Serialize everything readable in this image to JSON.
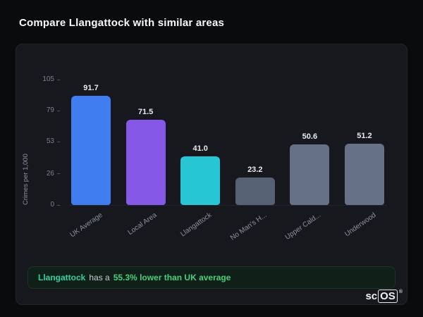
{
  "page": {
    "title": "Compare Llangattock with similar areas"
  },
  "chart_data": {
    "type": "bar",
    "title": "",
    "categories": [
      "UK Average",
      "Local Area",
      "Llangattock",
      "No Man's H...",
      "Upper Cald...",
      "Underwood"
    ],
    "values": [
      91.7,
      71.5,
      41.0,
      23.2,
      50.6,
      51.2
    ],
    "value_labels": [
      "91.7",
      "71.5",
      "41.0",
      "23.2",
      "50.6",
      "51.2"
    ],
    "bar_colors": [
      "#3f7df0",
      "#8658e8",
      "#26c6d4",
      "#566173",
      "#667186",
      "#667186"
    ],
    "xlabel": "",
    "ylabel": "Crimes per 1,000",
    "yticks": [
      0,
      26,
      53,
      79,
      105
    ],
    "ylim": [
      0,
      105
    ],
    "grid": false,
    "legend_position": "none"
  },
  "footer_note": {
    "area_name": "Llangattock",
    "middle_text": "has a",
    "highlight_text": "55.3% lower than UK average",
    "area_color": "#2fd0a6",
    "highlight_color": "#43d17c"
  },
  "logo": {
    "prefix": "sc",
    "suffix": "OS",
    "reg": "®"
  },
  "colors": {
    "background": "#0a0b0d",
    "card": "#16181d",
    "accent_blue": "#3f7df0"
  }
}
